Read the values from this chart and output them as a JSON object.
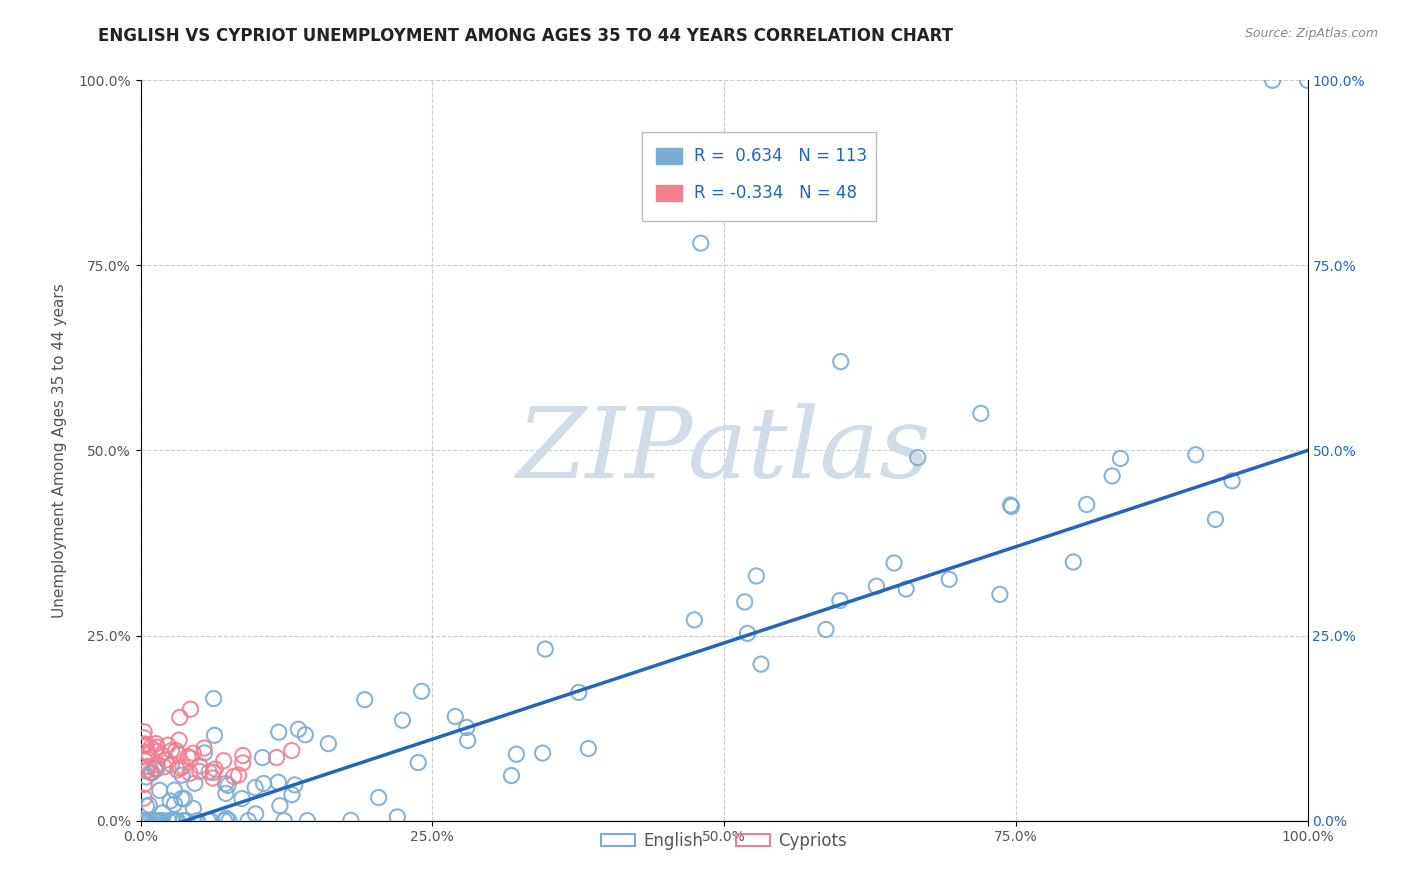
{
  "title": "ENGLISH VS CYPRIOT UNEMPLOYMENT AMONG AGES 35 TO 44 YEARS CORRELATION CHART",
  "source": "Source: ZipAtlas.com",
  "ylabel": "Unemployment Among Ages 35 to 44 years",
  "xlim": [
    0,
    1.0
  ],
  "ylim": [
    0,
    1.0
  ],
  "xticks": [
    0.0,
    0.25,
    0.5,
    0.75,
    1.0
  ],
  "xticklabels": [
    "0.0%",
    "25.0%",
    "50.0%",
    "75.0%",
    "100.0%"
  ],
  "yticks": [
    0.0,
    0.25,
    0.5,
    0.75,
    1.0
  ],
  "yticklabels": [
    "0.0%",
    "25.0%",
    "50.0%",
    "75.0%",
    "100.0%"
  ],
  "right_yticklabels": [
    "0.0%",
    "25.0%",
    "50.0%",
    "75.0%",
    "100.0%"
  ],
  "english_R": "0.634",
  "english_N": "113",
  "cypriot_R": "-0.334",
  "cypriot_N": "48",
  "english_color": "#7aadd4",
  "cypriot_color": "#f08090",
  "trend_color": "#2266bb",
  "watermark_zip": "ZIP",
  "watermark_atlas": "atlas",
  "grid_color": "#cccccc",
  "background_color": "#ffffff",
  "title_fontsize": 12,
  "axis_label_fontsize": 11,
  "tick_fontsize": 10,
  "legend_fontsize": 12,
  "watermark_color": "#d0dde8",
  "watermark_fontsize": 72,
  "right_tick_color": "#2266bb",
  "left_tick_color": "#555555"
}
